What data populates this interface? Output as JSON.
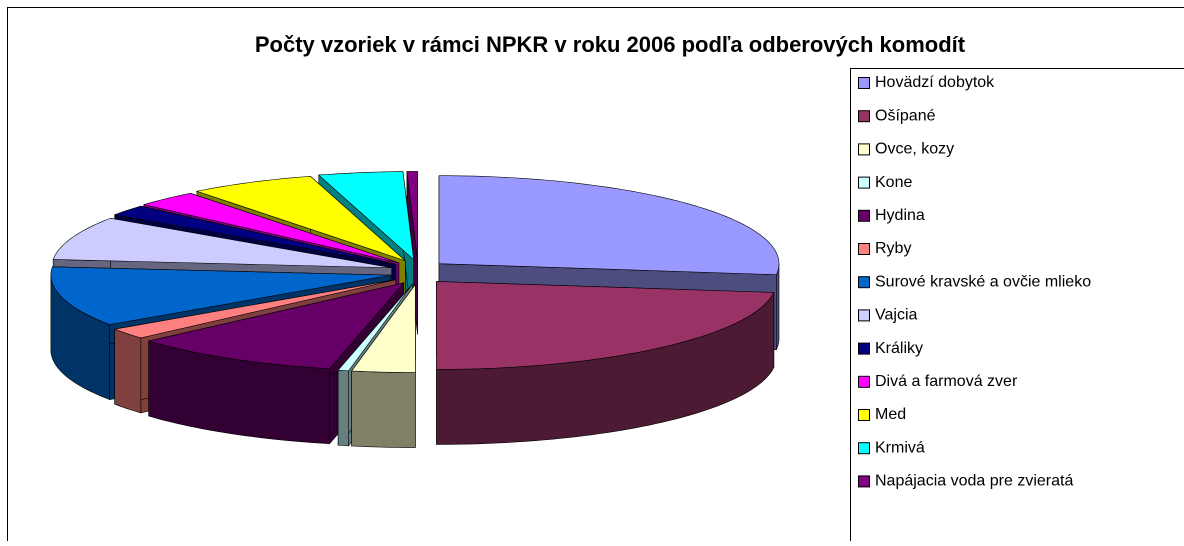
{
  "chart_data": {
    "type": "pie",
    "title": "Počty vzoriek v rámci NPKR v roku 2006 podľa odberových komodít",
    "categories": [
      "Hovädzí dobytok",
      "Ošípané",
      "Ovce, kozy",
      "Kone",
      "Hydina",
      "Ryby",
      "Surové kravské a ovčie mlieko",
      "Vajcia",
      "Králiky",
      "Divá a farmová zver",
      "Med",
      "Krmivá",
      "Napájacia voda pre zvieratá"
    ],
    "values": [
      27,
      23,
      3,
      0.5,
      10,
      2,
      11,
      8,
      2,
      3,
      6,
      4,
      0.5
    ],
    "colors": [
      "#9999ff",
      "#993366",
      "#ffffcc",
      "#ccffff",
      "#660066",
      "#ff8080",
      "#0066cc",
      "#ccccff",
      "#000080",
      "#ff00ff",
      "#ffff00",
      "#00ffff",
      "#800080"
    ],
    "legend": "right"
  }
}
